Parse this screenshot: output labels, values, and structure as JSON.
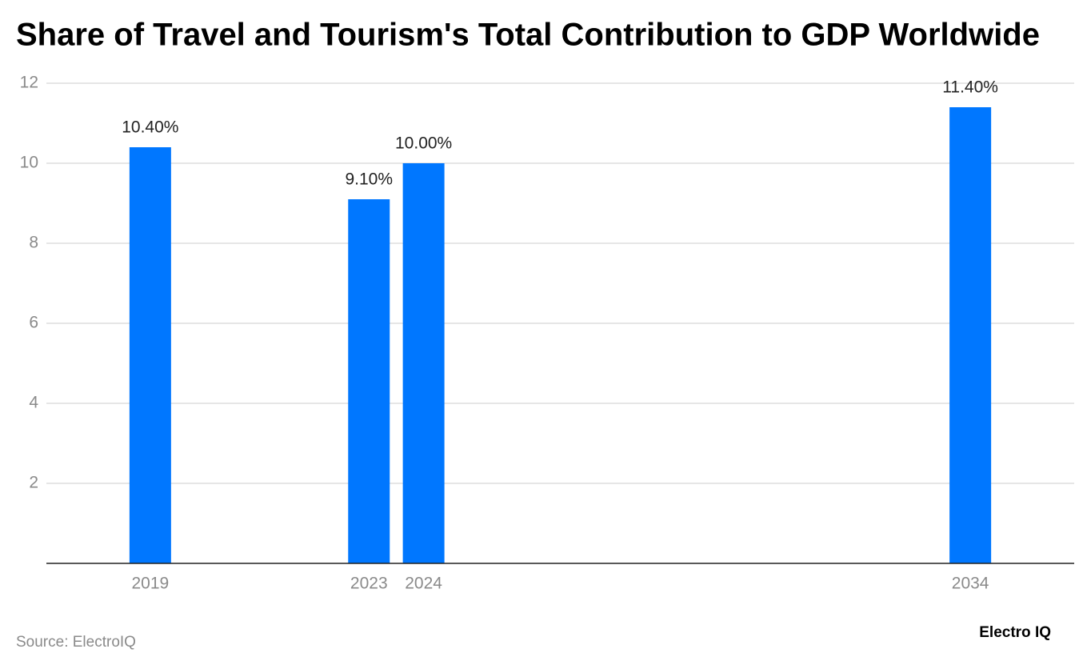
{
  "chart_data": {
    "type": "bar",
    "title": "Share of Travel and Tourism's Total Contribution to GDP Worldwide",
    "x": [
      2019,
      2023,
      2024,
      2034
    ],
    "values": [
      10.4,
      9.1,
      10.0,
      11.4
    ],
    "value_labels": [
      "10.40%",
      "9.10%",
      "10.00%",
      "11.40%"
    ],
    "color": "#0077ff",
    "xlim": [
      2017.1,
      2035.9
    ],
    "xticks": [
      2019,
      2023,
      2024,
      2034
    ],
    "ylim": [
      0,
      12
    ],
    "yticks": [
      2,
      4,
      6,
      8,
      10,
      12
    ],
    "grid": true,
    "source": "Source: ElectroIQ",
    "logo": "Electro IQ"
  }
}
